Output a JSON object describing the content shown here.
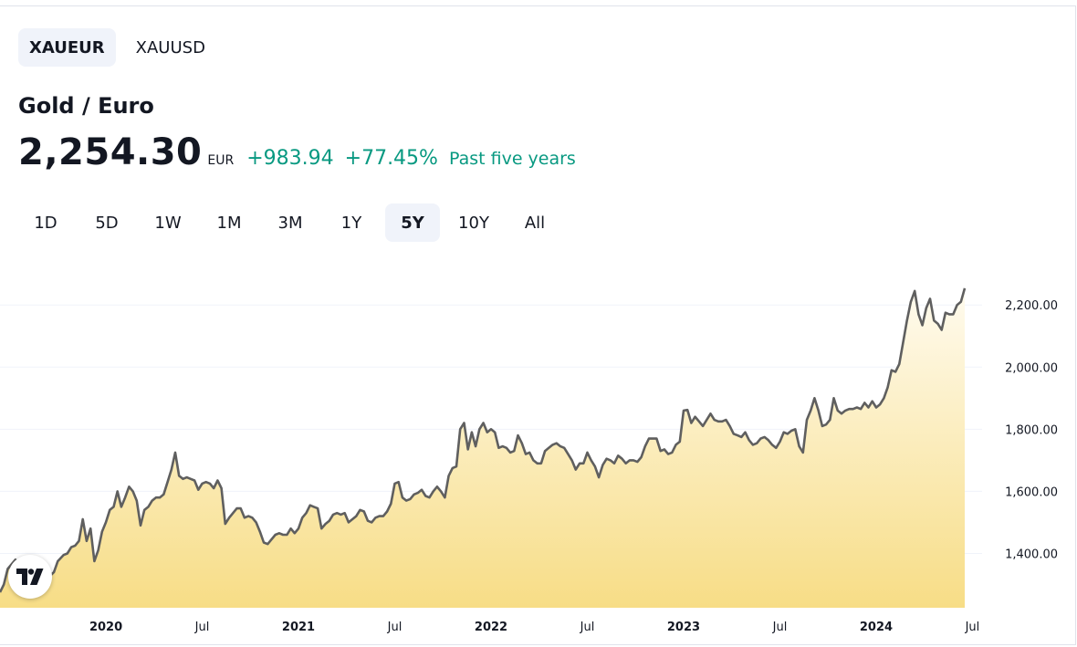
{
  "symbols": [
    {
      "label": "XAUEUR",
      "active": true
    },
    {
      "label": "XAUUSD",
      "active": false
    }
  ],
  "title": "Gold / Euro",
  "price": "2,254.30",
  "currency": "EUR",
  "change": "+983.94",
  "change_pct": "+77.45%",
  "period_label": "Past five years",
  "ranges": [
    {
      "label": "1D",
      "active": false
    },
    {
      "label": "5D",
      "active": false
    },
    {
      "label": "1W",
      "active": false
    },
    {
      "label": "1M",
      "active": false
    },
    {
      "label": "3M",
      "active": false
    },
    {
      "label": "1Y",
      "active": false
    },
    {
      "label": "5Y",
      "active": true
    },
    {
      "label": "10Y",
      "active": false
    },
    {
      "label": "All",
      "active": false
    }
  ],
  "colors": {
    "line": "#5f5f5f",
    "fill_top": "#fffbef",
    "fill_bottom": "#f7dd86",
    "positive": "#089981"
  },
  "icons": {
    "logo": "tradingview-logo-icon"
  },
  "chart_data": {
    "type": "area",
    "title": "",
    "xlabel": "",
    "ylabel": "",
    "ylim": [
      1225,
      2330
    ],
    "xlim": [
      2019.45,
      2024.55
    ],
    "y_ticks": [
      "1,400.00",
      "1,600.00",
      "1,800.00",
      "2,000.00",
      "2,200.00"
    ],
    "y_tick_values": [
      1400,
      1600,
      1800,
      2000,
      2200
    ],
    "x_ticks": [
      {
        "label": "2020",
        "t": 2020.0,
        "bold": true
      },
      {
        "label": "Jul",
        "t": 2020.5,
        "bold": false
      },
      {
        "label": "2021",
        "t": 2021.0,
        "bold": true
      },
      {
        "label": "Jul",
        "t": 2021.5,
        "bold": false
      },
      {
        "label": "2022",
        "t": 2022.0,
        "bold": true
      },
      {
        "label": "Jul",
        "t": 2022.5,
        "bold": false
      },
      {
        "label": "2023",
        "t": 2023.0,
        "bold": true
      },
      {
        "label": "Jul",
        "t": 2023.5,
        "bold": false
      },
      {
        "label": "2024",
        "t": 2024.0,
        "bold": true
      },
      {
        "label": "Jul",
        "t": 2024.5,
        "bold": false
      }
    ],
    "grid": true,
    "series": [
      {
        "points": [
          [
            2019.45,
            1275
          ],
          [
            2019.47,
            1300
          ],
          [
            2019.49,
            1350
          ],
          [
            2019.51,
            1365
          ],
          [
            2019.53,
            1380
          ],
          [
            2019.56,
            1360
          ],
          [
            2019.58,
            1355
          ],
          [
            2019.6,
            1330
          ],
          [
            2019.62,
            1322
          ],
          [
            2019.64,
            1320
          ],
          [
            2019.67,
            1318
          ],
          [
            2019.69,
            1322
          ],
          [
            2019.71,
            1328
          ],
          [
            2019.73,
            1340
          ],
          [
            2019.75,
            1375
          ],
          [
            2019.78,
            1395
          ],
          [
            2019.8,
            1400
          ],
          [
            2019.82,
            1420
          ],
          [
            2019.84,
            1425
          ],
          [
            2019.86,
            1440
          ],
          [
            2019.88,
            1510
          ],
          [
            2019.9,
            1440
          ],
          [
            2019.92,
            1480
          ],
          [
            2019.94,
            1375
          ],
          [
            2019.96,
            1410
          ],
          [
            2019.98,
            1470
          ],
          [
            2020.0,
            1500
          ],
          [
            2020.02,
            1540
          ],
          [
            2020.04,
            1550
          ],
          [
            2020.06,
            1600
          ],
          [
            2020.08,
            1550
          ],
          [
            2020.1,
            1580
          ],
          [
            2020.12,
            1615
          ],
          [
            2020.14,
            1600
          ],
          [
            2020.16,
            1570
          ],
          [
            2020.18,
            1490
          ],
          [
            2020.2,
            1540
          ],
          [
            2020.22,
            1550
          ],
          [
            2020.24,
            1570
          ],
          [
            2020.26,
            1580
          ],
          [
            2020.28,
            1580
          ],
          [
            2020.3,
            1590
          ],
          [
            2020.32,
            1630
          ],
          [
            2020.34,
            1670
          ],
          [
            2020.36,
            1725
          ],
          [
            2020.38,
            1650
          ],
          [
            2020.4,
            1640
          ],
          [
            2020.42,
            1645
          ],
          [
            2020.44,
            1640
          ],
          [
            2020.46,
            1635
          ],
          [
            2020.48,
            1605
          ],
          [
            2020.5,
            1625
          ],
          [
            2020.52,
            1630
          ],
          [
            2020.54,
            1625
          ],
          [
            2020.56,
            1610
          ],
          [
            2020.58,
            1635
          ],
          [
            2020.6,
            1610
          ],
          [
            2020.62,
            1495
          ],
          [
            2020.64,
            1515
          ],
          [
            2020.66,
            1530
          ],
          [
            2020.68,
            1545
          ],
          [
            2020.7,
            1545
          ],
          [
            2020.72,
            1515
          ],
          [
            2020.74,
            1520
          ],
          [
            2020.76,
            1515
          ],
          [
            2020.78,
            1500
          ],
          [
            2020.8,
            1470
          ],
          [
            2020.82,
            1435
          ],
          [
            2020.84,
            1430
          ],
          [
            2020.86,
            1445
          ],
          [
            2020.88,
            1460
          ],
          [
            2020.9,
            1465
          ],
          [
            2020.92,
            1460
          ],
          [
            2020.94,
            1460
          ],
          [
            2020.96,
            1480
          ],
          [
            2020.98,
            1465
          ],
          [
            2021.0,
            1480
          ],
          [
            2021.02,
            1515
          ],
          [
            2021.04,
            1530
          ],
          [
            2021.06,
            1555
          ],
          [
            2021.08,
            1550
          ],
          [
            2021.1,
            1545
          ],
          [
            2021.12,
            1480
          ],
          [
            2021.14,
            1495
          ],
          [
            2021.16,
            1505
          ],
          [
            2021.18,
            1525
          ],
          [
            2021.2,
            1530
          ],
          [
            2021.22,
            1525
          ],
          [
            2021.24,
            1530
          ],
          [
            2021.26,
            1500
          ],
          [
            2021.28,
            1510
          ],
          [
            2021.3,
            1520
          ],
          [
            2021.32,
            1540
          ],
          [
            2021.34,
            1535
          ],
          [
            2021.36,
            1505
          ],
          [
            2021.38,
            1500
          ],
          [
            2021.4,
            1515
          ],
          [
            2021.42,
            1520
          ],
          [
            2021.44,
            1520
          ],
          [
            2021.46,
            1535
          ],
          [
            2021.48,
            1560
          ],
          [
            2021.5,
            1625
          ],
          [
            2021.52,
            1630
          ],
          [
            2021.54,
            1580
          ],
          [
            2021.56,
            1570
          ],
          [
            2021.58,
            1575
          ],
          [
            2021.6,
            1590
          ],
          [
            2021.62,
            1595
          ],
          [
            2021.64,
            1605
          ],
          [
            2021.66,
            1585
          ],
          [
            2021.68,
            1580
          ],
          [
            2021.7,
            1600
          ],
          [
            2021.72,
            1615
          ],
          [
            2021.74,
            1600
          ],
          [
            2021.76,
            1580
          ],
          [
            2021.78,
            1650
          ],
          [
            2021.8,
            1675
          ],
          [
            2021.82,
            1680
          ],
          [
            2021.84,
            1800
          ],
          [
            2021.86,
            1820
          ],
          [
            2021.88,
            1735
          ],
          [
            2021.9,
            1790
          ],
          [
            2021.92,
            1745
          ],
          [
            2021.94,
            1800
          ],
          [
            2021.96,
            1820
          ],
          [
            2021.98,
            1790
          ],
          [
            2022.0,
            1800
          ],
          [
            2022.02,
            1790
          ],
          [
            2022.04,
            1740
          ],
          [
            2022.06,
            1745
          ],
          [
            2022.08,
            1740
          ],
          [
            2022.1,
            1725
          ],
          [
            2022.12,
            1730
          ],
          [
            2022.14,
            1780
          ],
          [
            2022.16,
            1755
          ],
          [
            2022.18,
            1720
          ],
          [
            2022.2,
            1725
          ],
          [
            2022.22,
            1700
          ],
          [
            2022.24,
            1690
          ],
          [
            2022.26,
            1690
          ],
          [
            2022.28,
            1730
          ],
          [
            2022.3,
            1740
          ],
          [
            2022.32,
            1750
          ],
          [
            2022.34,
            1755
          ],
          [
            2022.36,
            1745
          ],
          [
            2022.38,
            1740
          ],
          [
            2022.4,
            1720
          ],
          [
            2022.42,
            1700
          ],
          [
            2022.44,
            1670
          ],
          [
            2022.46,
            1690
          ],
          [
            2022.48,
            1690
          ],
          [
            2022.5,
            1725
          ],
          [
            2022.52,
            1700
          ],
          [
            2022.54,
            1680
          ],
          [
            2022.56,
            1645
          ],
          [
            2022.58,
            1685
          ],
          [
            2022.6,
            1705
          ],
          [
            2022.62,
            1700
          ],
          [
            2022.64,
            1690
          ],
          [
            2022.66,
            1715
          ],
          [
            2022.68,
            1705
          ],
          [
            2022.7,
            1690
          ],
          [
            2022.72,
            1700
          ],
          [
            2022.74,
            1700
          ],
          [
            2022.76,
            1695
          ],
          [
            2022.78,
            1710
          ],
          [
            2022.8,
            1745
          ],
          [
            2022.82,
            1770
          ],
          [
            2022.84,
            1770
          ],
          [
            2022.86,
            1770
          ],
          [
            2022.88,
            1730
          ],
          [
            2022.9,
            1735
          ],
          [
            2022.92,
            1720
          ],
          [
            2022.94,
            1725
          ],
          [
            2022.96,
            1750
          ],
          [
            2022.98,
            1760
          ],
          [
            2023.0,
            1860
          ],
          [
            2023.02,
            1862
          ],
          [
            2023.04,
            1820
          ],
          [
            2023.06,
            1840
          ],
          [
            2023.08,
            1825
          ],
          [
            2023.1,
            1810
          ],
          [
            2023.12,
            1830
          ],
          [
            2023.14,
            1850
          ],
          [
            2023.16,
            1830
          ],
          [
            2023.18,
            1825
          ],
          [
            2023.2,
            1825
          ],
          [
            2023.22,
            1830
          ],
          [
            2023.24,
            1810
          ],
          [
            2023.26,
            1785
          ],
          [
            2023.28,
            1780
          ],
          [
            2023.3,
            1775
          ],
          [
            2023.32,
            1790
          ],
          [
            2023.34,
            1765
          ],
          [
            2023.36,
            1750
          ],
          [
            2023.38,
            1755
          ],
          [
            2023.4,
            1770
          ],
          [
            2023.42,
            1775
          ],
          [
            2023.44,
            1765
          ],
          [
            2023.46,
            1750
          ],
          [
            2023.48,
            1740
          ],
          [
            2023.5,
            1760
          ],
          [
            2023.52,
            1790
          ],
          [
            2023.54,
            1785
          ],
          [
            2023.56,
            1795
          ],
          [
            2023.58,
            1800
          ],
          [
            2023.6,
            1745
          ],
          [
            2023.62,
            1725
          ],
          [
            2023.64,
            1830
          ],
          [
            2023.66,
            1860
          ],
          [
            2023.68,
            1900
          ],
          [
            2023.7,
            1860
          ],
          [
            2023.72,
            1810
          ],
          [
            2023.74,
            1815
          ],
          [
            2023.76,
            1830
          ],
          [
            2023.78,
            1900
          ],
          [
            2023.8,
            1860
          ],
          [
            2023.82,
            1850
          ],
          [
            2023.84,
            1860
          ],
          [
            2023.86,
            1865
          ],
          [
            2023.88,
            1865
          ],
          [
            2023.9,
            1870
          ],
          [
            2023.92,
            1865
          ],
          [
            2023.94,
            1885
          ],
          [
            2023.96,
            1870
          ],
          [
            2023.98,
            1890
          ],
          [
            2024.0,
            1870
          ],
          [
            2024.02,
            1880
          ],
          [
            2024.04,
            1900
          ],
          [
            2024.06,
            1935
          ],
          [
            2024.08,
            1990
          ],
          [
            2024.1,
            1985
          ],
          [
            2024.12,
            2010
          ],
          [
            2024.14,
            2080
          ],
          [
            2024.16,
            2150
          ],
          [
            2024.18,
            2210
          ],
          [
            2024.2,
            2245
          ],
          [
            2024.22,
            2170
          ],
          [
            2024.24,
            2135
          ],
          [
            2024.26,
            2190
          ],
          [
            2024.28,
            2220
          ],
          [
            2024.3,
            2150
          ],
          [
            2024.32,
            2140
          ],
          [
            2024.34,
            2120
          ],
          [
            2024.36,
            2175
          ],
          [
            2024.38,
            2170
          ],
          [
            2024.4,
            2170
          ],
          [
            2024.42,
            2200
          ],
          [
            2024.44,
            2210
          ],
          [
            2024.46,
            2254
          ]
        ]
      }
    ]
  }
}
